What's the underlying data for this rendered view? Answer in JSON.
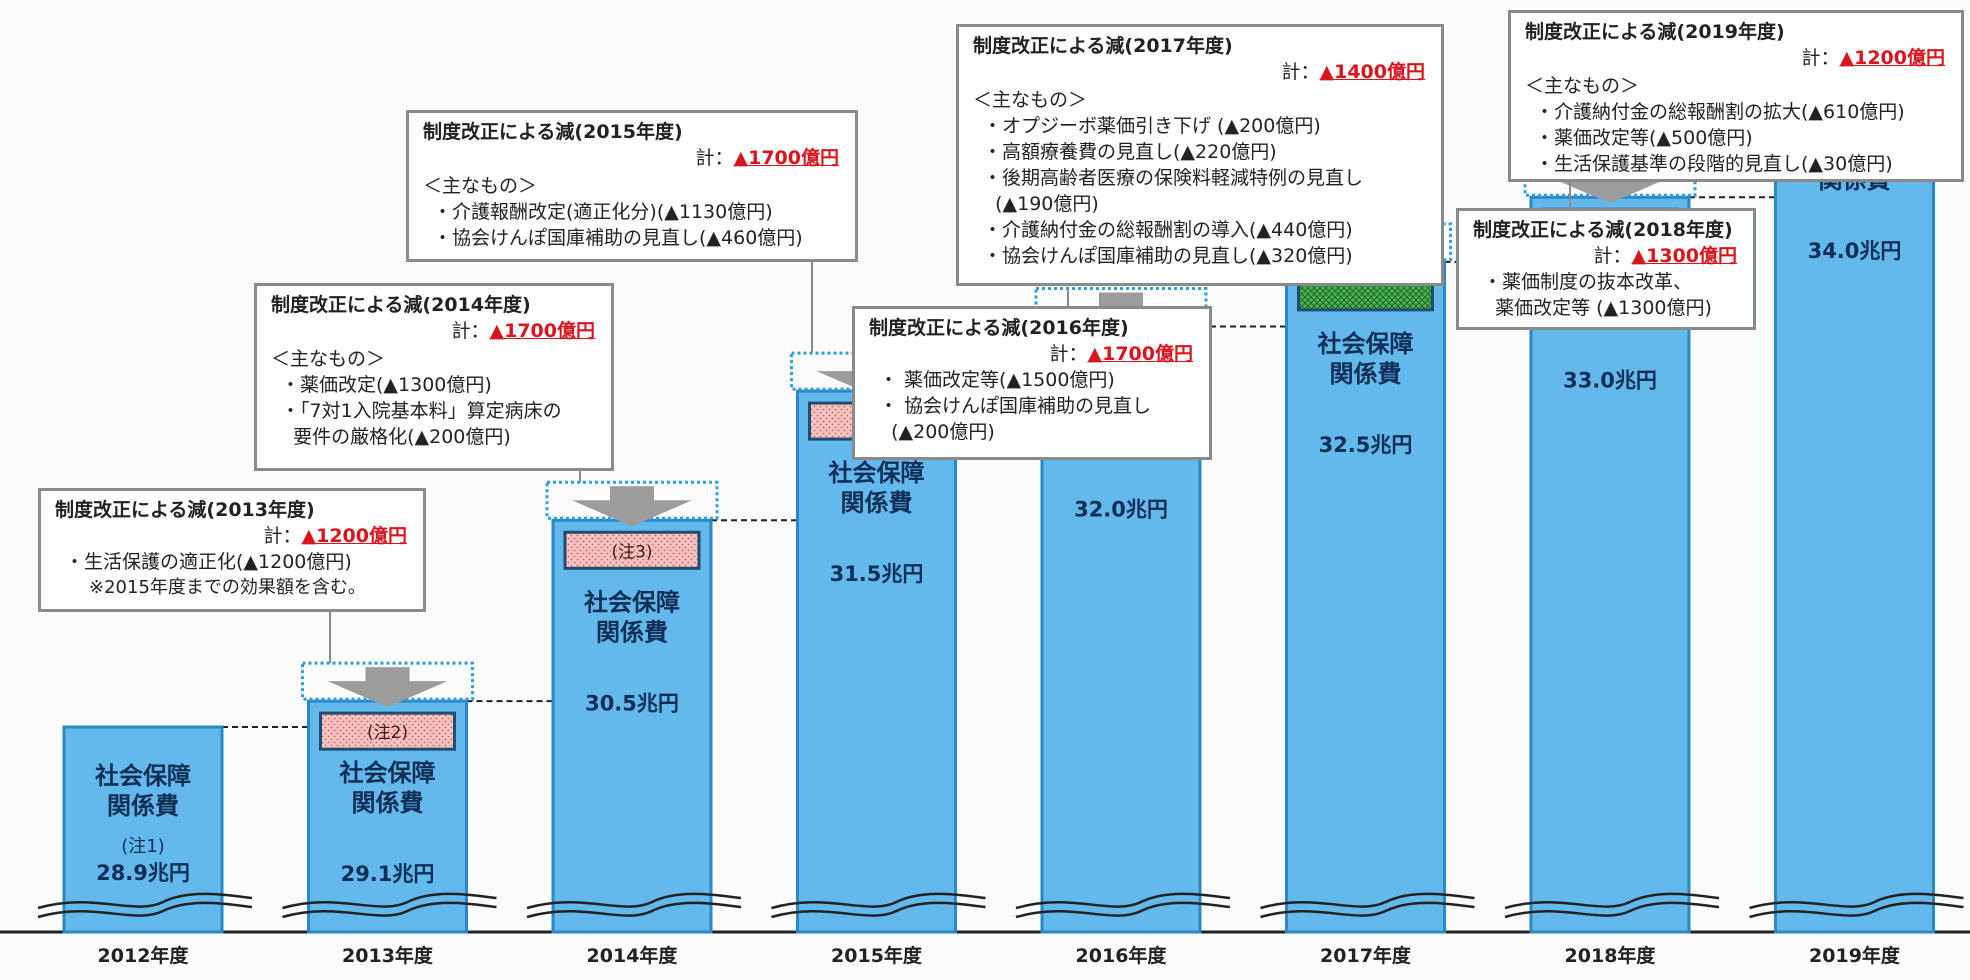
{
  "colors": {
    "bar_fill": "#63b8ec",
    "bar_border": "#2c87c6",
    "bar_text": "#0f2f55",
    "red_hatch": "#f5b4b4",
    "green_hatch": "#3fa349",
    "yellow_hatch": "#f1d868",
    "arrow": "#9c9c9c",
    "dotted_box": "#2e9fde",
    "callout_border": "#8a8a8a",
    "accent_red": "#d8141c"
  },
  "chart_data": {
    "type": "bar",
    "categories": [
      "2012年度",
      "2013年度",
      "2014年度",
      "2015年度",
      "2016年度",
      "2017年度",
      "2018年度",
      "2019年度"
    ],
    "values": [
      28.9,
      29.1,
      30.5,
      31.5,
      32.0,
      32.5,
      33.0,
      34.0
    ],
    "unit": "兆円",
    "bar_label": "社会保障\n関係費",
    "value_labels": [
      "28.9兆円",
      "29.1兆円",
      "30.5兆円",
      "31.5兆円",
      "32.0兆円",
      "32.5兆円",
      "33.0兆円",
      "34.0兆円"
    ],
    "notes": [
      "(注1)",
      "(注2)",
      "(注3)",
      "",
      "",
      "",
      "",
      ""
    ],
    "reduction_hatch": [
      "none",
      "red",
      "red",
      "red",
      "green",
      "green",
      "green",
      "yellow"
    ],
    "reductions": [
      {
        "year": "2013年度",
        "title": "制度改正による減(2013年度)",
        "total_label": "計：",
        "total": "▲1200億円",
        "subtitle": "",
        "items": [
          "・生活保護の適正化(▲1200億円)",
          "※2015年度までの効果額を含む。"
        ]
      },
      {
        "year": "2014年度",
        "title": "制度改正による減(2014年度)",
        "total_label": "計：",
        "total": "▲1700億円",
        "subtitle": "＜主なもの＞",
        "items": [
          "・薬価改定(▲1300億円)",
          "・「7対1入院基本料」算定病床の",
          "  要件の厳格化(▲200億円)"
        ]
      },
      {
        "year": "2015年度",
        "title": "制度改正による減(2015年度)",
        "total_label": "計：",
        "total": "▲1700億円",
        "subtitle": "＜主なもの＞",
        "items": [
          "・介護報酬改定(適正化分)(▲1130億円)",
          "・協会けんぽ国庫補助の見直し(▲460億円)"
        ]
      },
      {
        "year": "2016年度",
        "title": "制度改正による減(2016年度)",
        "total_label": "計：",
        "total": "▲1700億円",
        "subtitle": "",
        "items": [
          "・ 薬価改定等(▲1500億円)",
          "・ 協会けんぽ国庫補助の見直し",
          "  (▲200億円)"
        ]
      },
      {
        "year": "2017年度",
        "title": "制度改正による減(2017年度)",
        "total_label": "計：",
        "total": "▲1400億円",
        "subtitle": "＜主なもの＞",
        "items": [
          "・オプジーボ薬価引き下げ (▲200億円)",
          "・高額療養費の見直し(▲220億円)",
          "・後期高齢者医療の保険料軽減特例の見直し",
          "  (▲190億円)",
          "・介護納付金の総報酬割の導入(▲440億円)",
          "・協会けんぽ国庫補助の見直し(▲320億円)"
        ]
      },
      {
        "year": "2018年度",
        "title": "制度改正による減(2018年度)",
        "total_label": "計：",
        "total": "▲1300億円",
        "subtitle": "",
        "items": [
          "・薬価制度の抜本改革、",
          "  薬価改定等 (▲1300億円)"
        ]
      },
      {
        "year": "2019年度",
        "title": "制度改正による減(2019年度)",
        "total_label": "計：",
        "total": "▲1200億円",
        "subtitle": "＜主なもの＞",
        "items": [
          "・介護納付金の総報酬割の拡大(▲610億円)",
          "・薬価改定等(▲500億円)",
          "・生活保護基準の段階的見直し(▲30億円)"
        ]
      }
    ]
  }
}
